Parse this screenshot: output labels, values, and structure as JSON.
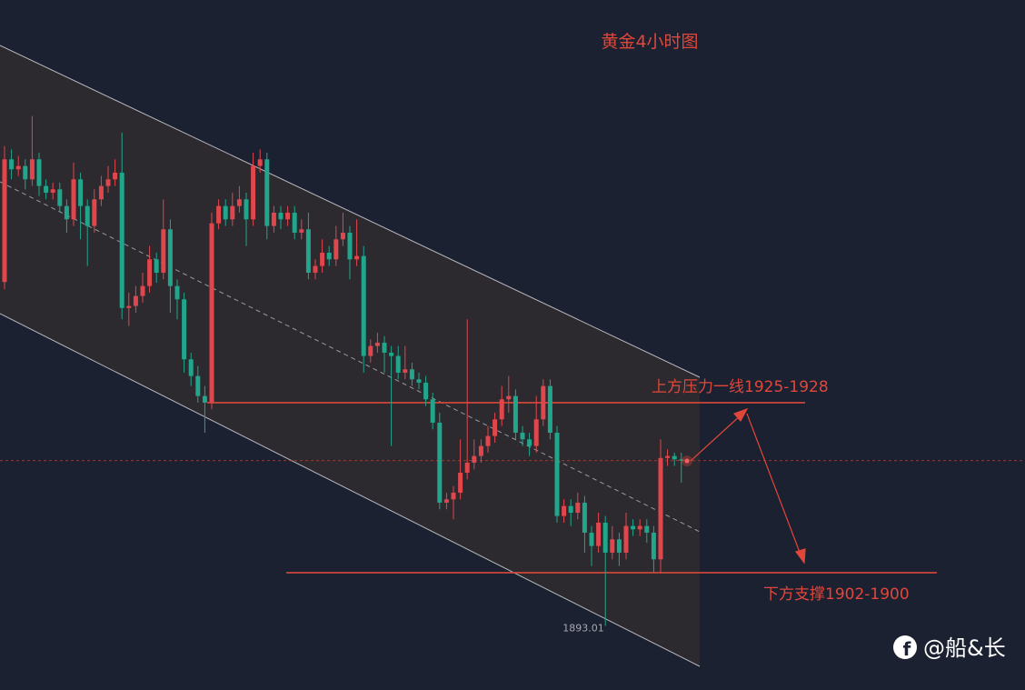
{
  "chart_data": {
    "type": "candlestick",
    "title": "黄金4小时图",
    "ylim": [
      1883.4,
      1986.9
    ],
    "up_color": "#e0474c",
    "down_color": "#22a68b",
    "candles": [
      [
        1944.6,
        1965,
        1943.5,
        1963
      ],
      [
        1963,
        1964.5,
        1960,
        1961.5
      ],
      [
        1961.5,
        1963.5,
        1960.5,
        1962
      ],
      [
        1962,
        1963,
        1958.5,
        1960
      ],
      [
        1960,
        1969.5,
        1959,
        1963
      ],
      [
        1963,
        1964,
        1957.5,
        1959
      ],
      [
        1959,
        1960,
        1957,
        1958
      ],
      [
        1958,
        1959.5,
        1957,
        1958.5
      ],
      [
        1958.5,
        1959.5,
        1955,
        1956
      ],
      [
        1956,
        1957,
        1952,
        1954
      ],
      [
        1954,
        1962.5,
        1953,
        1960
      ],
      [
        1960,
        1961,
        1951,
        1956
      ],
      [
        1956,
        1957,
        1947,
        1953
      ],
      [
        1953,
        1958.5,
        1952,
        1957
      ],
      [
        1957,
        1960.5,
        1956,
        1959
      ],
      [
        1959,
        1962,
        1958,
        1960
      ],
      [
        1960,
        1963,
        1959,
        1961
      ],
      [
        1961,
        1967,
        1939,
        1940.7
      ],
      [
        1940.7,
        1943,
        1938,
        1941
      ],
      [
        1941,
        1944,
        1940,
        1942.5
      ],
      [
        1942.5,
        1946,
        1941.5,
        1944
      ],
      [
        1944,
        1950,
        1943,
        1948
      ],
      [
        1948,
        1949,
        1944.5,
        1946
      ],
      [
        1946,
        1957,
        1945,
        1952.5
      ],
      [
        1952.5,
        1954,
        1940,
        1944
      ],
      [
        1944,
        1945,
        1939,
        1942
      ],
      [
        1942,
        1943,
        1931,
        1933
      ],
      [
        1933,
        1934,
        1929,
        1930.5
      ],
      [
        1930.5,
        1932,
        1926.5,
        1927.5
      ],
      [
        1927.5,
        1929,
        1922,
        1926.5
      ],
      [
        1926.5,
        1955,
        1925.5,
        1953.4
      ],
      [
        1953.4,
        1957,
        1952.5,
        1956
      ],
      [
        1956,
        1957,
        1953,
        1954
      ],
      [
        1954,
        1958,
        1953,
        1956
      ],
      [
        1956,
        1959,
        1955,
        1957
      ],
      [
        1957,
        1958,
        1950,
        1954
      ],
      [
        1954,
        1964,
        1953,
        1962
      ],
      [
        1962,
        1964.5,
        1961,
        1963
      ],
      [
        1963,
        1964,
        1951,
        1953
      ],
      [
        1953,
        1956,
        1952,
        1955
      ],
      [
        1955,
        1956,
        1952.5,
        1954
      ],
      [
        1954,
        1956,
        1953,
        1955
      ],
      [
        1955,
        1956,
        1951,
        1952
      ],
      [
        1952,
        1954,
        1951,
        1952.5
      ],
      [
        1952.5,
        1955,
        1945,
        1946
      ],
      [
        1946,
        1948,
        1945,
        1947
      ],
      [
        1947,
        1951,
        1946,
        1949
      ],
      [
        1949,
        1950,
        1947,
        1948
      ],
      [
        1948,
        1953,
        1947,
        1951
      ],
      [
        1951,
        1955,
        1950,
        1952
      ],
      [
        1952,
        1953,
        1945,
        1948
      ],
      [
        1948,
        1954,
        1947,
        1948.5
      ],
      [
        1948.5,
        1950,
        1931,
        1933.5
      ],
      [
        1933.5,
        1936,
        1932.5,
        1935
      ],
      [
        1935,
        1937,
        1934,
        1935.5
      ],
      [
        1935.5,
        1936.5,
        1931,
        1934
      ],
      [
        1934,
        1935,
        1920,
        1933.5
      ],
      [
        1933.5,
        1935,
        1930,
        1931
      ],
      [
        1931,
        1935,
        1930,
        1931.5
      ],
      [
        1931.5,
        1932.5,
        1929,
        1930
      ],
      [
        1930,
        1931,
        1928.5,
        1929.5
      ],
      [
        1929.5,
        1930.5,
        1926,
        1927
      ],
      [
        1927,
        1928,
        1922.5,
        1923.5
      ],
      [
        1923.5,
        1925,
        1910.5,
        1911.5
      ],
      [
        1911.5,
        1913,
        1910.5,
        1912
      ],
      [
        1912,
        1914,
        1909,
        1913
      ],
      [
        1913,
        1921,
        1912,
        1916
      ],
      [
        1916,
        1939,
        1915,
        1917.5
      ],
      [
        1917.5,
        1921,
        1916.5,
        1918.5
      ],
      [
        1918.5,
        1921,
        1917.5,
        1920
      ],
      [
        1920,
        1923,
        1919,
        1921.5
      ],
      [
        1921.5,
        1925,
        1920.5,
        1924
      ],
      [
        1924,
        1929,
        1923,
        1927
      ],
      [
        1927,
        1930.5,
        1925,
        1927.5
      ],
      [
        1927.5,
        1928.5,
        1921,
        1922
      ],
      [
        1922,
        1923,
        1920,
        1921
      ],
      [
        1921,
        1922,
        1918.5,
        1920
      ],
      [
        1920,
        1927.5,
        1919,
        1924
      ],
      [
        1924,
        1930,
        1923,
        1929
      ],
      [
        1929,
        1930,
        1921,
        1922
      ],
      [
        1922,
        1923,
        1908.5,
        1909.5
      ],
      [
        1909.5,
        1912,
        1908.5,
        1911
      ],
      [
        1911,
        1912,
        1908,
        1910
      ],
      [
        1910,
        1913,
        1909,
        1911.5
      ],
      [
        1911.5,
        1912.5,
        1904,
        1907
      ],
      [
        1907,
        1908,
        1902,
        1905
      ],
      [
        1905,
        1910,
        1904,
        1908.5
      ],
      [
        1908.5,
        1909.5,
        1893.01,
        1904
      ],
      [
        1904,
        1908,
        1903,
        1906
      ],
      [
        1906,
        1907,
        1902,
        1904
      ],
      [
        1904,
        1910,
        1903,
        1908
      ],
      [
        1908,
        1909,
        1906.5,
        1907.5
      ],
      [
        1907.5,
        1909,
        1906.5,
        1908
      ],
      [
        1908,
        1909,
        1905.5,
        1907
      ],
      [
        1907,
        1908,
        1901,
        1903
      ],
      [
        1903,
        1921,
        1901,
        1918.2
      ],
      [
        1918.2,
        1919.5,
        1917,
        1918.5
      ],
      [
        1918.5,
        1919,
        1917,
        1918
      ],
      [
        1918,
        1919,
        1914.5,
        1917.8
      ]
    ],
    "resistance_line": 1926.5,
    "resistance_label": "上方压力一线1925-1928",
    "support_line": 1901,
    "support_label": "下方支撑1902-1900",
    "last_price": 1917.8,
    "low_label": 1893.01,
    "watermark": "@船&长"
  }
}
